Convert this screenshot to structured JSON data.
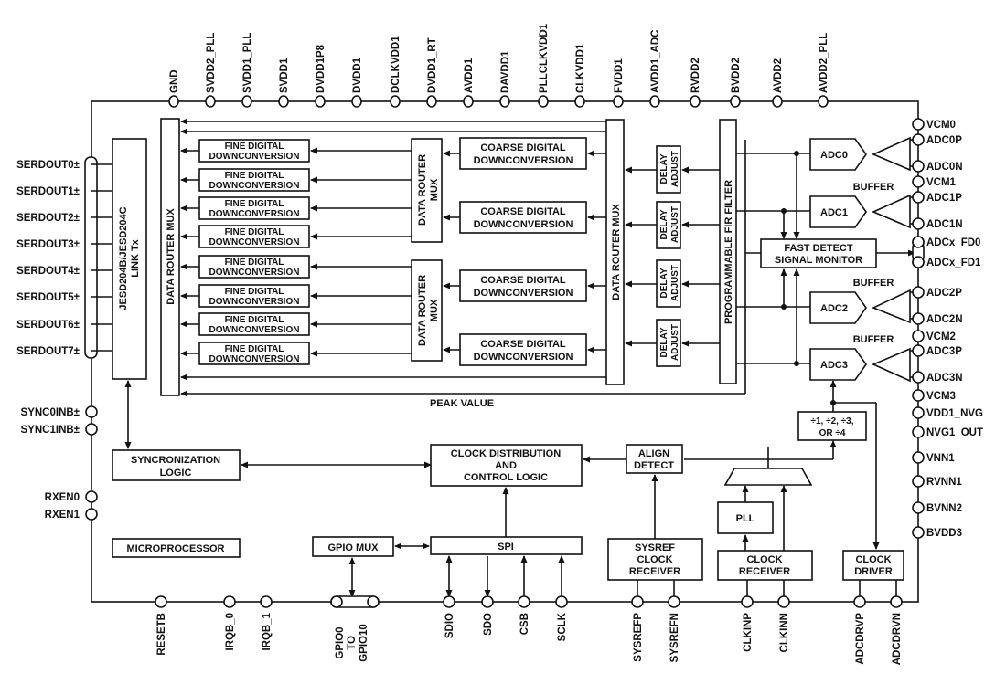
{
  "pins": {
    "top": [
      "GND",
      "SVDD2_PLL",
      "SVDD1_PLL",
      "SVDD1",
      "DVDD1P8",
      "DVDD1",
      "DCLKVDD1",
      "DVDD1_RT",
      "AVDD1",
      "DAVDD1",
      "PLLCLKVDD1",
      "CLKVDD1",
      "FVDD1",
      "AVDD1_ADC",
      "RVDD2",
      "BVDD2",
      "AVDD2",
      "AVDD2_PLL"
    ],
    "right": [
      "VCM0",
      "ADC0P",
      "ADC0N",
      "VCM1",
      "ADC1P",
      "ADC1N",
      "ADCx_FD0",
      "ADCx_FD1",
      "ADC2P",
      "ADC2N",
      "VCM2",
      "ADC3P",
      "ADC3N",
      "VCM3",
      "VDD1_NVG",
      "NVG1_OUT",
      "VNN1",
      "RVNN1",
      "BVNN2",
      "BVDD3"
    ],
    "left": [
      "SERDOUT0±",
      "SERDOUT1±",
      "SERDOUT2±",
      "SERDOUT3±",
      "SERDOUT4±",
      "SERDOUT5±",
      "SERDOUT6±",
      "SERDOUT7±",
      "SYNC0INB±",
      "SYNC1INB±",
      "RXEN0",
      "RXEN1"
    ],
    "bottom": [
      "RESETB",
      "IRQB_0",
      "IRQB_1",
      "SDIO",
      "SDO",
      "CSB",
      "SCLK",
      "SYSREFP",
      "SYSREFN",
      "CLKINP",
      "CLKINN",
      "ADCDRVP",
      "ADCDRVN"
    ],
    "gpio": [
      "GPIO0",
      "TO",
      "GPIO10"
    ]
  },
  "blocks": {
    "jesd": [
      "JESD204B/JESD204C",
      "LINK Tx"
    ],
    "data_router_mux": "DATA ROUTER MUX",
    "data_router_mux_small": [
      "DATA ROUTER",
      "MUX"
    ],
    "fine_ddc": [
      "FINE DIGITAL",
      "DOWNCONVERSION"
    ],
    "coarse_ddc": [
      "COARSE DIGITAL",
      "DOWNCONVERSION"
    ],
    "delay_adjust": [
      "DELAY",
      "ADJUST"
    ],
    "fir": "PROGRAMMABLE FIR FILTER",
    "adcs": [
      "ADC0",
      "ADC1",
      "ADC2",
      "ADC3"
    ],
    "buffer": "BUFFER",
    "fast_detect": [
      "FAST DETECT",
      "SIGNAL MONITOR"
    ],
    "peak_value": "PEAK VALUE",
    "divider": [
      "÷1, ÷2, ÷3,",
      "OR ÷4"
    ],
    "sync_logic": [
      "SYNCRONIZATION",
      "LOGIC"
    ],
    "clock_dist": [
      "CLOCK DISTRIBUTION",
      "AND",
      "CONTROL LOGIC"
    ],
    "align_detect": [
      "ALIGN",
      "DETECT"
    ],
    "microprocessor": "MICROPROCESSOR",
    "gpio_mux": "GPIO MUX",
    "spi": "SPI",
    "sysref_rx": [
      "SYSREF",
      "CLOCK",
      "RECEIVER"
    ],
    "pll": "PLL",
    "clock_rx": [
      "CLOCK",
      "RECEIVER"
    ],
    "clock_driver": [
      "CLOCK",
      "DRIVER"
    ]
  }
}
